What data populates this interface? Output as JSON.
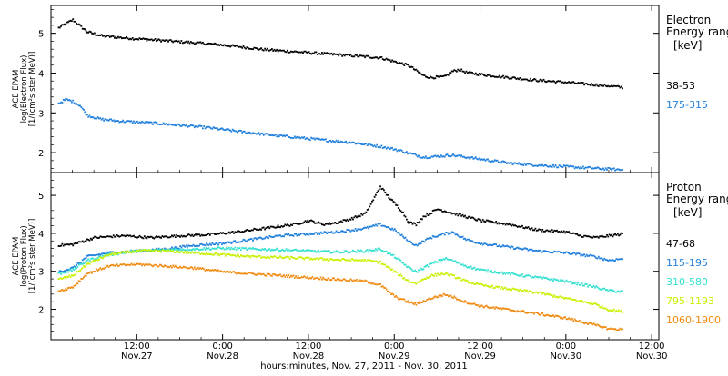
{
  "chart_data": {
    "type": "line",
    "x_axis": {
      "label": "hours:minutes, Nov. 27, 2011 - Nov. 30, 2011",
      "ticks": [
        {
          "hour": 12,
          "time": "12:00",
          "date": "Nov.27"
        },
        {
          "hour": 24,
          "time": "0:00",
          "date": "Nov.28"
        },
        {
          "hour": 36,
          "time": "12:00",
          "date": "Nov.28"
        },
        {
          "hour": 48,
          "time": "0:00",
          "date": "Nov.29"
        },
        {
          "hour": 60,
          "time": "12:00",
          "date": "Nov.29"
        },
        {
          "hour": 72,
          "time": "0:00",
          "date": "Nov.30"
        },
        {
          "hour": 84,
          "time": "12:00",
          "date": "Nov.30"
        }
      ]
    },
    "panels": [
      {
        "ylabel_lines": [
          "ACE EPAM",
          "log(Electron Flux)",
          "[1/(cm²s ster MeV)]"
        ],
        "ylim": [
          1.5,
          5.7
        ],
        "yticks": [
          2,
          3,
          4,
          5
        ],
        "legend_title": [
          "Electron",
          "Energy ranges"
        ],
        "legend_units": "[keV]",
        "series": [
          {
            "name": "38-53",
            "color": "#000000",
            "points": [
              [
                1,
                5.15
              ],
              [
                2,
                5.25
              ],
              [
                3,
                5.35
              ],
              [
                4,
                5.2
              ],
              [
                5,
                5.05
              ],
              [
                7,
                4.95
              ],
              [
                10,
                4.9
              ],
              [
                14,
                4.85
              ],
              [
                18,
                4.8
              ],
              [
                22,
                4.75
              ],
              [
                26,
                4.68
              ],
              [
                30,
                4.6
              ],
              [
                34,
                4.55
              ],
              [
                38,
                4.5
              ],
              [
                42,
                4.45
              ],
              [
                46,
                4.4
              ],
              [
                48,
                4.3
              ],
              [
                50,
                4.2
              ],
              [
                52,
                3.95
              ],
              [
                53,
                3.9
              ],
              [
                55,
                3.92
              ],
              [
                56,
                4.05
              ],
              [
                57,
                4.1
              ],
              [
                58,
                4.03
              ],
              [
                60,
                3.98
              ],
              [
                64,
                3.9
              ],
              [
                68,
                3.83
              ],
              [
                72,
                3.78
              ],
              [
                76,
                3.72
              ],
              [
                78,
                3.69
              ],
              [
                80,
                3.65
              ]
            ]
          },
          {
            "name": "175-315",
            "color": "#1f7fdc",
            "points": [
              [
                1,
                3.25
              ],
              [
                2,
                3.35
              ],
              [
                3,
                3.3
              ],
              [
                4,
                3.2
              ],
              [
                5,
                2.95
              ],
              [
                7,
                2.85
              ],
              [
                10,
                2.8
              ],
              [
                14,
                2.76
              ],
              [
                18,
                2.7
              ],
              [
                22,
                2.64
              ],
              [
                26,
                2.55
              ],
              [
                30,
                2.47
              ],
              [
                34,
                2.4
              ],
              [
                38,
                2.33
              ],
              [
                42,
                2.27
              ],
              [
                46,
                2.17
              ],
              [
                48,
                2.1
              ],
              [
                50,
                2.0
              ],
              [
                52,
                1.9
              ],
              [
                54,
                1.92
              ],
              [
                56,
                1.95
              ],
              [
                58,
                1.9
              ],
              [
                60,
                1.85
              ],
              [
                64,
                1.75
              ],
              [
                68,
                1.7
              ],
              [
                72,
                1.66
              ],
              [
                76,
                1.62
              ],
              [
                80,
                1.58
              ]
            ]
          }
        ]
      },
      {
        "ylabel_lines": [
          "ACE EPAM",
          "log(Proton Flux)",
          "[1/(cm²s ster MeV)]"
        ],
        "ylim": [
          1.2,
          5.6
        ],
        "yticks": [
          2,
          3,
          4,
          5
        ],
        "legend_title": [
          "Proton",
          "Energy ranges"
        ],
        "legend_units": "[keV]",
        "series": [
          {
            "name": "47-68",
            "color": "#000000",
            "points": [
              [
                1,
                3.7
              ],
              [
                3,
                3.72
              ],
              [
                6,
                3.9
              ],
              [
                10,
                3.95
              ],
              [
                14,
                3.9
              ],
              [
                18,
                3.95
              ],
              [
                22,
                3.98
              ],
              [
                26,
                4.05
              ],
              [
                30,
                4.15
              ],
              [
                34,
                4.25
              ],
              [
                36,
                4.35
              ],
              [
                38,
                4.25
              ],
              [
                40,
                4.3
              ],
              [
                42,
                4.4
              ],
              [
                44,
                4.55
              ],
              [
                45,
                4.9
              ],
              [
                46,
                5.25
              ],
              [
                47,
                5.0
              ],
              [
                48,
                4.8
              ],
              [
                49,
                4.6
              ],
              [
                50,
                4.3
              ],
              [
                51,
                4.25
              ],
              [
                52,
                4.45
              ],
              [
                54,
                4.65
              ],
              [
                56,
                4.55
              ],
              [
                58,
                4.45
              ],
              [
                60,
                4.35
              ],
              [
                64,
                4.25
              ],
              [
                68,
                4.1
              ],
              [
                72,
                4.05
              ],
              [
                74,
                3.95
              ],
              [
                76,
                3.9
              ],
              [
                78,
                3.95
              ],
              [
                80,
                4.0
              ]
            ]
          },
          {
            "name": "115-195",
            "color": "#1f7fdc",
            "points": [
              [
                1,
                3.0
              ],
              [
                3,
                3.1
              ],
              [
                5,
                3.4
              ],
              [
                8,
                3.5
              ],
              [
                12,
                3.55
              ],
              [
                16,
                3.6
              ],
              [
                20,
                3.7
              ],
              [
                24,
                3.75
              ],
              [
                28,
                3.85
              ],
              [
                32,
                3.95
              ],
              [
                36,
                4.0
              ],
              [
                40,
                4.05
              ],
              [
                44,
                4.15
              ],
              [
                46,
                4.25
              ],
              [
                48,
                4.1
              ],
              [
                50,
                3.8
              ],
              [
                51,
                3.7
              ],
              [
                53,
                3.9
              ],
              [
                55,
                4.0
              ],
              [
                56,
                4.05
              ],
              [
                58,
                3.85
              ],
              [
                60,
                3.75
              ],
              [
                64,
                3.65
              ],
              [
                68,
                3.55
              ],
              [
                72,
                3.5
              ],
              [
                76,
                3.4
              ],
              [
                78,
                3.3
              ],
              [
                80,
                3.35
              ]
            ]
          },
          {
            "name": "310-580",
            "color": "#33e0cf",
            "points": [
              [
                1,
                2.95
              ],
              [
                3,
                3.05
              ],
              [
                5,
                3.3
              ],
              [
                8,
                3.45
              ],
              [
                12,
                3.55
              ],
              [
                16,
                3.58
              ],
              [
                20,
                3.6
              ],
              [
                24,
                3.62
              ],
              [
                28,
                3.6
              ],
              [
                32,
                3.58
              ],
              [
                36,
                3.55
              ],
              [
                40,
                3.52
              ],
              [
                44,
                3.55
              ],
              [
                46,
                3.6
              ],
              [
                48,
                3.4
              ],
              [
                50,
                3.1
              ],
              [
                51,
                3.0
              ],
              [
                53,
                3.2
              ],
              [
                55,
                3.35
              ],
              [
                56,
                3.3
              ],
              [
                58,
                3.15
              ],
              [
                60,
                3.05
              ],
              [
                64,
                2.95
              ],
              [
                68,
                2.85
              ],
              [
                72,
                2.75
              ],
              [
                76,
                2.6
              ],
              [
                78,
                2.5
              ],
              [
                80,
                2.48
              ]
            ]
          },
          {
            "name": "795-1193",
            "color": "#c8f000",
            "points": [
              [
                1,
                2.8
              ],
              [
                3,
                2.9
              ],
              [
                5,
                3.2
              ],
              [
                8,
                3.45
              ],
              [
                12,
                3.55
              ],
              [
                16,
                3.55
              ],
              [
                20,
                3.5
              ],
              [
                24,
                3.45
              ],
              [
                28,
                3.4
              ],
              [
                32,
                3.38
              ],
              [
                36,
                3.35
              ],
              [
                40,
                3.32
              ],
              [
                44,
                3.3
              ],
              [
                46,
                3.25
              ],
              [
                48,
                3.0
              ],
              [
                50,
                2.75
              ],
              [
                51,
                2.7
              ],
              [
                53,
                2.9
              ],
              [
                55,
                2.95
              ],
              [
                56,
                2.9
              ],
              [
                58,
                2.75
              ],
              [
                60,
                2.65
              ],
              [
                64,
                2.55
              ],
              [
                68,
                2.45
              ],
              [
                72,
                2.3
              ],
              [
                76,
                2.15
              ],
              [
                78,
                2.0
              ],
              [
                80,
                1.95
              ]
            ]
          },
          {
            "name": "1060-1900",
            "color": "#f08a10",
            "points": [
              [
                1,
                2.5
              ],
              [
                3,
                2.6
              ],
              [
                5,
                2.95
              ],
              [
                8,
                3.15
              ],
              [
                12,
                3.2
              ],
              [
                16,
                3.15
              ],
              [
                20,
                3.1
              ],
              [
                24,
                3.0
              ],
              [
                28,
                2.95
              ],
              [
                32,
                2.9
              ],
              [
                36,
                2.85
              ],
              [
                40,
                2.8
              ],
              [
                44,
                2.75
              ],
              [
                46,
                2.65
              ],
              [
                48,
                2.35
              ],
              [
                50,
                2.2
              ],
              [
                51,
                2.15
              ],
              [
                53,
                2.3
              ],
              [
                55,
                2.4
              ],
              [
                56,
                2.35
              ],
              [
                58,
                2.2
              ],
              [
                60,
                2.1
              ],
              [
                64,
                2.0
              ],
              [
                68,
                1.9
              ],
              [
                72,
                1.78
              ],
              [
                76,
                1.6
              ],
              [
                78,
                1.5
              ],
              [
                80,
                1.48
              ]
            ]
          }
        ]
      }
    ]
  }
}
